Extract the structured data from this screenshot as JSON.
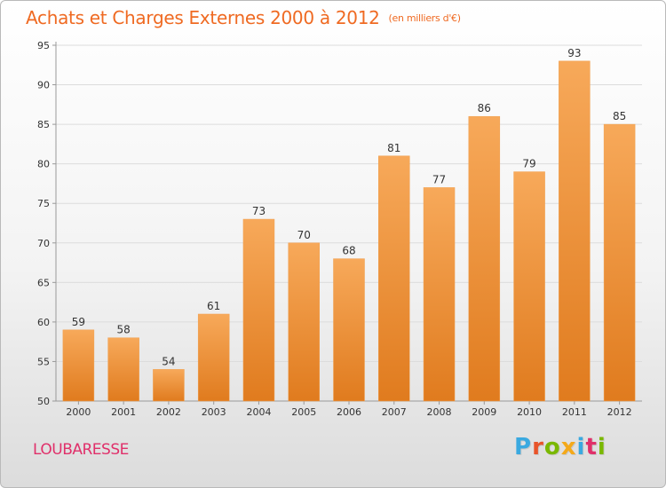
{
  "header": {
    "title": "Achats et Charges Externes 2000 à 2012",
    "subtitle": "(en milliers d'€)"
  },
  "location": "LOUBARESSE",
  "logo": {
    "text": "Proxiti",
    "letter_colors": [
      "#3aa9e0",
      "#e8542a",
      "#7ab800",
      "#f4a91a",
      "#3aa9e0",
      "#e0306a",
      "#7ab800"
    ]
  },
  "colors": {
    "bar_top": "#f7a95a",
    "bar_bottom": "#e07b1e",
    "grid": "#dcdcdc",
    "axis": "#999999"
  },
  "chart_data": {
    "type": "bar",
    "title": "Achats et Charges Externes 2000 à 2012",
    "subtitle": "(en milliers d'€)",
    "categories": [
      "2000",
      "2001",
      "2002",
      "2003",
      "2004",
      "2005",
      "2006",
      "2007",
      "2008",
      "2009",
      "2010",
      "2011",
      "2012"
    ],
    "values": [
      59,
      58,
      54,
      61,
      73,
      70,
      68,
      81,
      77,
      86,
      79,
      93,
      85
    ],
    "ylim": [
      50,
      95
    ],
    "yticks": [
      "50",
      "55",
      "60",
      "65",
      "70",
      "75",
      "80",
      "85",
      "90",
      "95"
    ],
    "xlabel": "",
    "ylabel": "",
    "grid": true,
    "legend": "none"
  }
}
